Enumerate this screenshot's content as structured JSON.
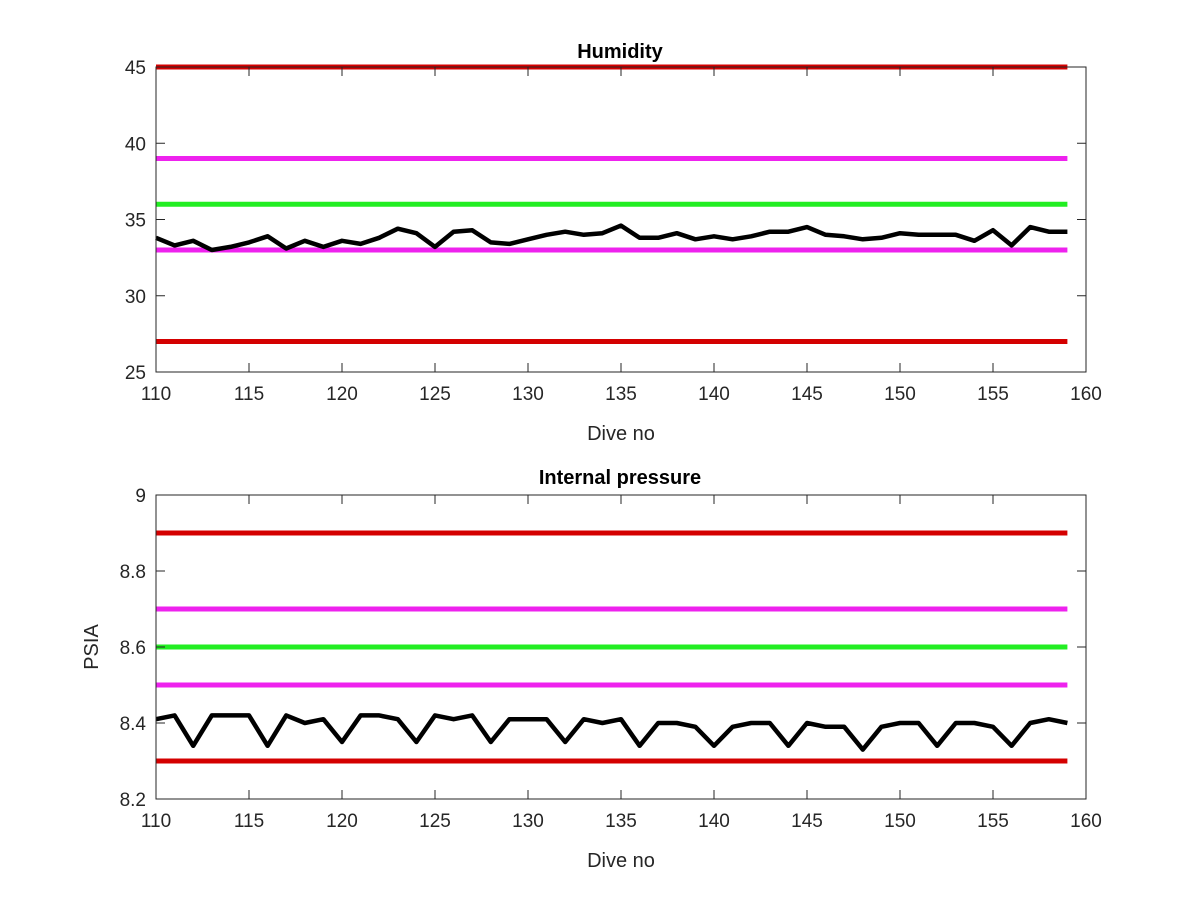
{
  "chart_data": [
    {
      "type": "line",
      "title": "Humidity",
      "xlabel": "Dive no",
      "ylabel": "",
      "xlim": [
        110,
        160
      ],
      "ylim": [
        25,
        45
      ],
      "xticks": [
        "110",
        "115",
        "120",
        "125",
        "130",
        "135",
        "140",
        "145",
        "150",
        "155",
        "160"
      ],
      "yticks": [
        "25",
        "30",
        "35",
        "40",
        "45"
      ],
      "grid": false,
      "reference_lines": [
        {
          "y": 45,
          "color": "#d40000",
          "x_range": [
            110,
            159
          ]
        },
        {
          "y": 39,
          "color": "#ee22ee",
          "x_range": [
            110,
            159
          ]
        },
        {
          "y": 36,
          "color": "#22ee22",
          "x_range": [
            110,
            159
          ]
        },
        {
          "y": 33,
          "color": "#ee22ee",
          "x_range": [
            110,
            159
          ]
        },
        {
          "y": 27,
          "color": "#d40000",
          "x_range": [
            110,
            159
          ]
        }
      ],
      "series": [
        {
          "color": "#000000",
          "x": [
            110,
            111,
            112,
            113,
            114,
            115,
            116,
            117,
            118,
            119,
            120,
            121,
            122,
            123,
            124,
            125,
            126,
            127,
            128,
            129,
            130,
            131,
            132,
            133,
            134,
            135,
            136,
            137,
            138,
            139,
            140,
            141,
            142,
            143,
            144,
            145,
            146,
            147,
            148,
            149,
            150,
            151,
            152,
            153,
            154,
            155,
            156,
            157,
            158,
            159
          ],
          "y": [
            33.8,
            33.3,
            33.6,
            33.0,
            33.2,
            33.5,
            33.9,
            33.1,
            33.6,
            33.2,
            33.6,
            33.4,
            33.8,
            34.4,
            34.1,
            33.2,
            34.2,
            34.3,
            33.5,
            33.4,
            33.7,
            34.0,
            34.2,
            34.0,
            34.1,
            34.6,
            33.8,
            33.8,
            34.1,
            33.7,
            33.9,
            33.7,
            33.9,
            34.2,
            34.2,
            34.5,
            34.0,
            33.9,
            33.7,
            33.8,
            34.1,
            34.0,
            34.0,
            34.0,
            33.6,
            34.3,
            33.3,
            34.5,
            34.2,
            34.2
          ]
        }
      ]
    },
    {
      "type": "line",
      "title": "Internal pressure",
      "xlabel": "Dive no",
      "ylabel": "PSIA",
      "xlim": [
        110,
        160
      ],
      "ylim": [
        8.2,
        9
      ],
      "xticks": [
        "110",
        "115",
        "120",
        "125",
        "130",
        "135",
        "140",
        "145",
        "150",
        "155",
        "160"
      ],
      "yticks": [
        "8.2",
        "8.4",
        "8.6",
        "8.8",
        "9"
      ],
      "grid": false,
      "reference_lines": [
        {
          "y": 8.9,
          "color": "#d40000",
          "x_range": [
            110,
            159
          ]
        },
        {
          "y": 8.7,
          "color": "#ee22ee",
          "x_range": [
            110,
            159
          ]
        },
        {
          "y": 8.6,
          "color": "#22ee22",
          "x_range": [
            110,
            159
          ]
        },
        {
          "y": 8.5,
          "color": "#ee22ee",
          "x_range": [
            110,
            159
          ]
        },
        {
          "y": 8.3,
          "color": "#d40000",
          "x_range": [
            110,
            159
          ]
        }
      ],
      "series": [
        {
          "color": "#000000",
          "x": [
            110,
            111,
            112,
            113,
            114,
            115,
            116,
            117,
            118,
            119,
            120,
            121,
            122,
            123,
            124,
            125,
            126,
            127,
            128,
            129,
            130,
            131,
            132,
            133,
            134,
            135,
            136,
            137,
            138,
            139,
            140,
            141,
            142,
            143,
            144,
            145,
            146,
            147,
            148,
            149,
            150,
            151,
            152,
            153,
            154,
            155,
            156,
            157,
            158,
            159
          ],
          "y": [
            8.41,
            8.42,
            8.34,
            8.42,
            8.42,
            8.42,
            8.34,
            8.42,
            8.4,
            8.41,
            8.35,
            8.42,
            8.42,
            8.41,
            8.35,
            8.42,
            8.41,
            8.42,
            8.35,
            8.41,
            8.41,
            8.41,
            8.35,
            8.41,
            8.4,
            8.41,
            8.34,
            8.4,
            8.4,
            8.39,
            8.34,
            8.39,
            8.4,
            8.4,
            8.34,
            8.4,
            8.39,
            8.39,
            8.33,
            8.39,
            8.4,
            8.4,
            8.34,
            8.4,
            8.4,
            8.39,
            8.34,
            8.4,
            8.41,
            8.4
          ]
        }
      ]
    }
  ]
}
